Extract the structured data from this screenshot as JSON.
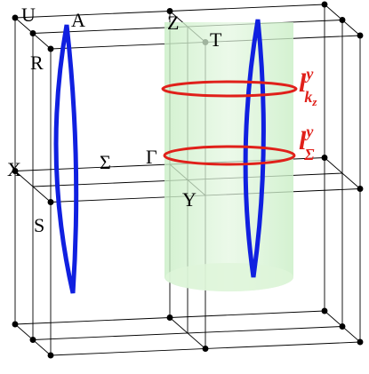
{
  "points": [
    {
      "label": "U"
    },
    {
      "label": "A"
    },
    {
      "label": "Z"
    },
    {
      "label": "T"
    },
    {
      "label": "R"
    },
    {
      "label": "X"
    },
    {
      "label": "Σ"
    },
    {
      "label": "Γ"
    },
    {
      "label": "Y"
    },
    {
      "label": "S"
    }
  ],
  "loops": [
    {
      "base": "l",
      "sup": "y",
      "sub": "k",
      "subsub": "z"
    },
    {
      "base": "l",
      "sup": "y",
      "sub": "Σ"
    }
  ]
}
